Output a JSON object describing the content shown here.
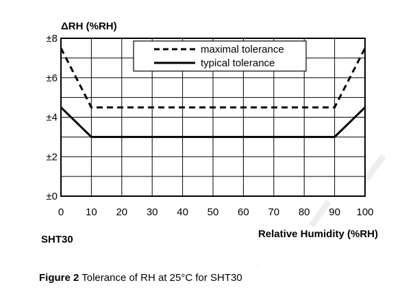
{
  "chart_data": {
    "type": "line",
    "title": "",
    "ylabel": "ΔRH (%RH)",
    "xlabel": "Relative Humidity (%RH)",
    "corner_label": "SHT30",
    "xlim": [
      0,
      100
    ],
    "ylim": [
      0,
      8
    ],
    "x_ticks": [
      0,
      10,
      20,
      30,
      40,
      50,
      60,
      70,
      80,
      90,
      100
    ],
    "x_tick_labels": [
      "0",
      "10",
      "20",
      "30",
      "40",
      "50",
      "60",
      "70",
      "80",
      "90",
      "100"
    ],
    "y_ticks": [
      0,
      2,
      4,
      6,
      8
    ],
    "y_tick_labels": [
      "±0",
      "±2",
      "±4",
      "±6",
      "±8"
    ],
    "grid": true,
    "legend_position": "top-center",
    "series": [
      {
        "name": "maximal tolerance",
        "style": "dashed",
        "x": [
          0,
          10,
          90,
          100
        ],
        "y": [
          7.5,
          4.5,
          4.5,
          7.5
        ]
      },
      {
        "name": "typical tolerance",
        "style": "solid",
        "x": [
          0,
          10,
          90,
          100
        ],
        "y": [
          4.5,
          3,
          3,
          4.5
        ]
      }
    ]
  },
  "caption": {
    "label": "Figure 2",
    "text": " Tolerance of RH at 25°C for SHT30"
  }
}
